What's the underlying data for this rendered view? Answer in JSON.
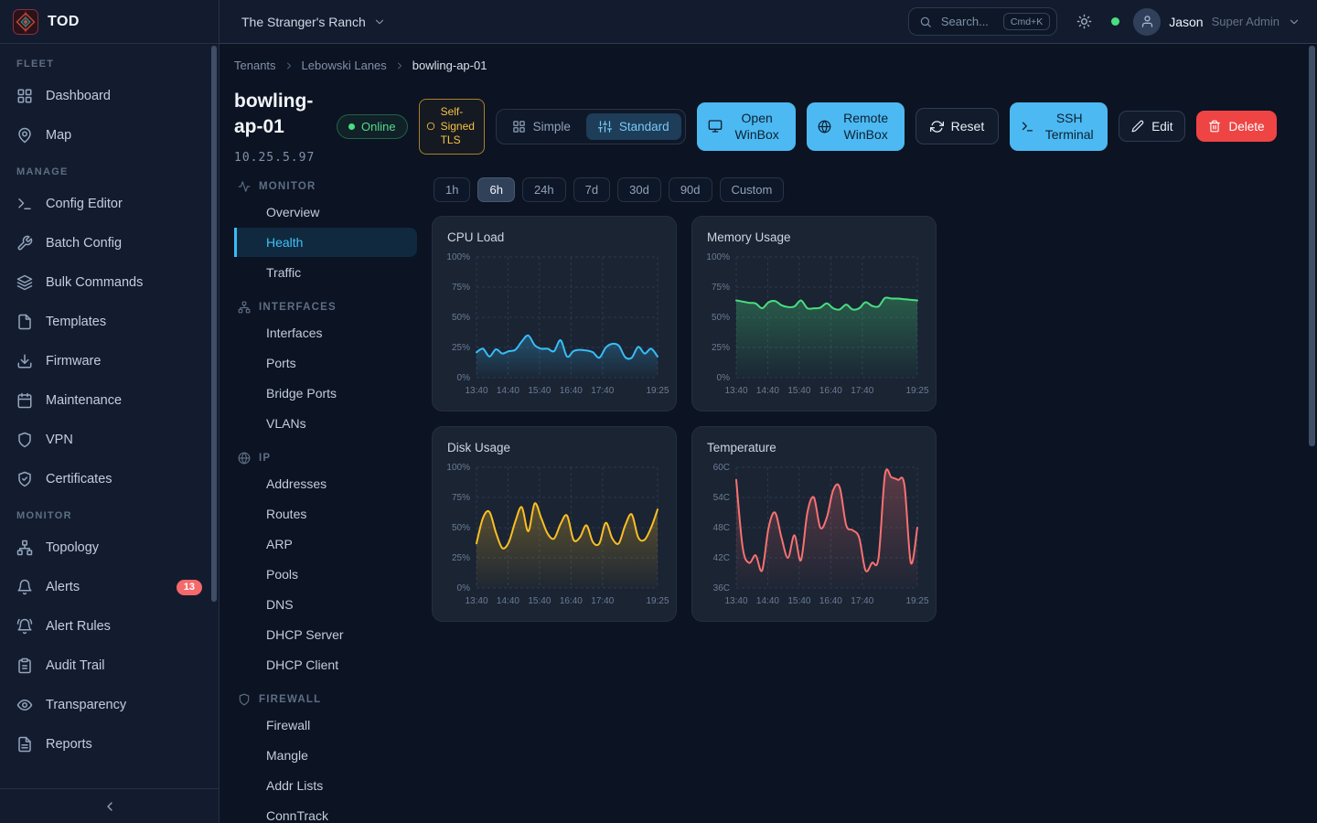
{
  "app": {
    "name": "TOD"
  },
  "topbar": {
    "tenant": "The Stranger's Ranch",
    "search_placeholder": "Search...",
    "search_shortcut": "Cmd+K",
    "user_name": "Jason",
    "user_role": "Super Admin"
  },
  "sidebar": {
    "sections": [
      {
        "label": "FLEET",
        "items": [
          {
            "label": "Dashboard",
            "icon": "layout-grid"
          },
          {
            "label": "Map",
            "icon": "map-pin"
          }
        ]
      },
      {
        "label": "MANAGE",
        "items": [
          {
            "label": "Config Editor",
            "icon": "terminal"
          },
          {
            "label": "Batch Config",
            "icon": "wrench"
          },
          {
            "label": "Bulk Commands",
            "icon": "layers"
          },
          {
            "label": "Templates",
            "icon": "file"
          },
          {
            "label": "Firmware",
            "icon": "download"
          },
          {
            "label": "Maintenance",
            "icon": "calendar"
          },
          {
            "label": "VPN",
            "icon": "shield"
          },
          {
            "label": "Certificates",
            "icon": "shield-check"
          }
        ]
      },
      {
        "label": "MONITOR",
        "items": [
          {
            "label": "Topology",
            "icon": "network"
          },
          {
            "label": "Alerts",
            "icon": "bell",
            "badge": "13"
          },
          {
            "label": "Alert Rules",
            "icon": "bell-ring"
          },
          {
            "label": "Audit Trail",
            "icon": "clipboard"
          },
          {
            "label": "Transparency",
            "icon": "eye"
          },
          {
            "label": "Reports",
            "icon": "file-text"
          }
        ]
      }
    ]
  },
  "breadcrumb": [
    "Tenants",
    "Lebowski Lanes",
    "bowling-ap-01"
  ],
  "device": {
    "name": "bowling-ap-01",
    "ip": "10.25.5.97",
    "status": "Online",
    "tls": "Self-Signed TLS"
  },
  "header": {
    "mode_options": [
      {
        "label": "Simple",
        "icon": "layout-grid"
      },
      {
        "label": "Standard",
        "icon": "sliders"
      }
    ],
    "mode_selected": "Standard",
    "open_winbox": "Open WinBox",
    "remote_winbox": "Remote WinBox",
    "reset": "Reset",
    "ssh_terminal": "SSH Terminal",
    "edit": "Edit",
    "delete": "Delete"
  },
  "subnav": [
    {
      "label": "MONITOR",
      "icon": "activity",
      "active": "Health",
      "items": [
        "Overview",
        "Health",
        "Traffic"
      ]
    },
    {
      "label": "INTERFACES",
      "icon": "network",
      "items": [
        "Interfaces",
        "Ports",
        "Bridge Ports",
        "VLANs"
      ]
    },
    {
      "label": "IP",
      "icon": "globe",
      "items": [
        "Addresses",
        "Routes",
        "ARP",
        "Pools",
        "DNS",
        "DHCP Server",
        "DHCP Client"
      ]
    },
    {
      "label": "FIREWALL",
      "icon": "shield",
      "items": [
        "Firewall",
        "Mangle",
        "Addr Lists",
        "ConnTrack"
      ]
    }
  ],
  "time_range": {
    "options": [
      "1h",
      "6h",
      "24h",
      "7d",
      "30d",
      "90d",
      "Custom"
    ],
    "selected": "6h"
  },
  "colors": {
    "accent": "#38bdf8",
    "online": "#4ade80",
    "alert_badge": "#f4696b",
    "delete": "#ef4444",
    "tls": "#f5c242"
  },
  "chart_data": [
    {
      "type": "area",
      "title": "CPU Load",
      "unit": "%",
      "color": "#38bdf8",
      "ylim": [
        0,
        100
      ],
      "grid": "dashed",
      "legend": "none",
      "y_ticks": [
        {
          "v": 100,
          "label": "100%"
        },
        {
          "v": 75,
          "label": "75%"
        },
        {
          "v": 50,
          "label": "50%"
        },
        {
          "v": 25,
          "label": "25%"
        },
        {
          "v": 0,
          "label": "0%"
        }
      ],
      "x_ticks": [
        {
          "pos": 0,
          "label": "13:40"
        },
        {
          "pos": 0.174,
          "label": "14:40"
        },
        {
          "pos": 0.348,
          "label": "15:40"
        },
        {
          "pos": 0.522,
          "label": "16:40"
        },
        {
          "pos": 0.696,
          "label": "17:40"
        },
        {
          "pos": 1,
          "label": "19:25"
        }
      ],
      "values": [
        21,
        24,
        17.5,
        23.5,
        20,
        22,
        23,
        30,
        35,
        27,
        24,
        24,
        22,
        31,
        17.5,
        22,
        23,
        22.5,
        21,
        16.5,
        25,
        28,
        26.5,
        17,
        16.5,
        25.5,
        20,
        24,
        17.5
      ]
    },
    {
      "type": "area",
      "title": "Memory Usage",
      "unit": "%",
      "color": "#4ade80",
      "ylim": [
        0,
        100
      ],
      "grid": "dashed",
      "legend": "none",
      "y_ticks": [
        {
          "v": 100,
          "label": "100%"
        },
        {
          "v": 75,
          "label": "75%"
        },
        {
          "v": 50,
          "label": "50%"
        },
        {
          "v": 25,
          "label": "25%"
        },
        {
          "v": 0,
          "label": "0%"
        }
      ],
      "x_ticks": [
        {
          "pos": 0,
          "label": "13:40"
        },
        {
          "pos": 0.174,
          "label": "14:40"
        },
        {
          "pos": 0.348,
          "label": "15:40"
        },
        {
          "pos": 0.522,
          "label": "16:40"
        },
        {
          "pos": 0.696,
          "label": "17:40"
        },
        {
          "pos": 1,
          "label": "19:25"
        }
      ],
      "values": [
        64,
        63,
        62,
        61.5,
        57.5,
        62.5,
        63.5,
        60,
        58.5,
        59,
        64,
        57.5,
        57.5,
        58,
        61.5,
        57.5,
        56.5,
        60.5,
        56.5,
        57.5,
        62.5,
        59.5,
        59,
        66,
        65.5,
        65.5,
        65,
        64.5,
        64
      ]
    },
    {
      "type": "area",
      "title": "Disk Usage",
      "unit": "%",
      "color": "#fbbf24",
      "ylim": [
        0,
        100
      ],
      "grid": "dashed",
      "legend": "none",
      "y_ticks": [
        {
          "v": 100,
          "label": "100%"
        },
        {
          "v": 75,
          "label": "75%"
        },
        {
          "v": 50,
          "label": "50%"
        },
        {
          "v": 25,
          "label": "25%"
        },
        {
          "v": 0,
          "label": "0%"
        }
      ],
      "x_ticks": [
        {
          "pos": 0,
          "label": "13:40"
        },
        {
          "pos": 0.174,
          "label": "14:40"
        },
        {
          "pos": 0.348,
          "label": "15:40"
        },
        {
          "pos": 0.522,
          "label": "16:40"
        },
        {
          "pos": 0.696,
          "label": "17:40"
        },
        {
          "pos": 1,
          "label": "19:25"
        }
      ],
      "values": [
        37,
        58,
        63,
        46,
        33,
        38,
        55,
        67,
        47,
        70,
        58,
        45,
        41,
        53,
        60,
        40,
        42,
        52,
        38,
        37,
        54,
        41,
        37,
        52,
        61,
        42,
        40,
        50,
        65
      ]
    },
    {
      "type": "area",
      "title": "Temperature",
      "unit": "C",
      "color": "#f87171",
      "ylim": [
        36,
        60
      ],
      "grid": "dashed",
      "legend": "none",
      "y_ticks": [
        {
          "v": 60,
          "label": "60C"
        },
        {
          "v": 54,
          "label": "54C"
        },
        {
          "v": 48,
          "label": "48C"
        },
        {
          "v": 42,
          "label": "42C"
        },
        {
          "v": 36,
          "label": "36C"
        }
      ],
      "x_ticks": [
        {
          "pos": 0,
          "label": "13:40"
        },
        {
          "pos": 0.174,
          "label": "14:40"
        },
        {
          "pos": 0.348,
          "label": "15:40"
        },
        {
          "pos": 0.522,
          "label": "16:40"
        },
        {
          "pos": 0.696,
          "label": "17:40"
        },
        {
          "pos": 1,
          "label": "19:25"
        }
      ],
      "values": [
        57.5,
        44,
        41,
        42.5,
        39.5,
        48,
        51,
        46,
        42,
        46.5,
        41.5,
        51,
        54,
        48,
        50,
        55.5,
        56,
        48.5,
        47.5,
        46,
        39.5,
        41,
        42,
        58.5,
        58,
        57.5,
        56.5,
        41,
        48
      ]
    }
  ]
}
